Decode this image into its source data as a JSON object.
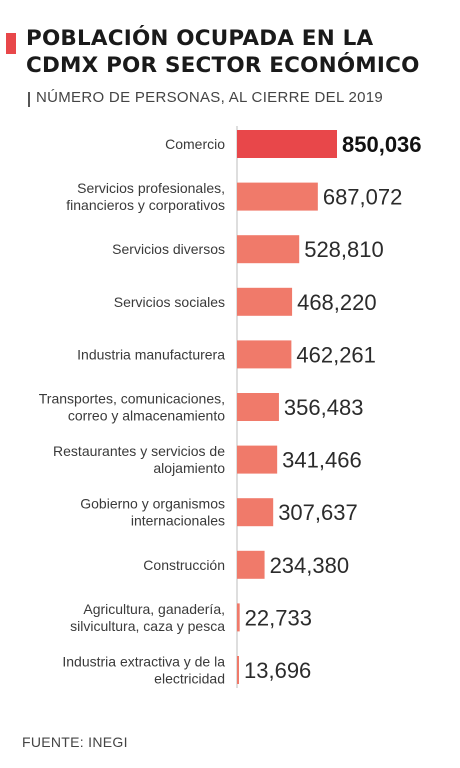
{
  "title_lines": [
    "POBLACIÓN OCUPADA EN LA",
    "CDMX POR SECTOR ECONÓMICO"
  ],
  "subtitle": "NÚMERO DE PERSONAS, AL CIERRE DEL 2019",
  "source": "FUENTE: INEGI",
  "colors": {
    "accent": "#e8474a",
    "highlight_bar": "#e8474a",
    "bar": "#f07a6a"
  },
  "chart_data": {
    "type": "bar",
    "orientation": "horizontal",
    "categories": [
      [
        "Comercio"
      ],
      [
        "Servicios profesionales,",
        "financieros y corporativos"
      ],
      [
        "Servicios diversos"
      ],
      [
        "Servicios sociales"
      ],
      [
        "Industria manufacturera"
      ],
      [
        "Transportes, comunicaciones,",
        "correo y almacenamiento"
      ],
      [
        "Restaurantes y servicios de",
        "alojamiento"
      ],
      [
        "Gobierno y organismos",
        "internacionales"
      ],
      [
        "Construcción"
      ],
      [
        "Agricultura, ganadería,",
        "silvicultura, caza y pesca"
      ],
      [
        "Industria extractiva y de la",
        "electricidad"
      ]
    ],
    "values": [
      850036,
      687072,
      528810,
      468220,
      462261,
      356483,
      341466,
      307637,
      234380,
      22733,
      13696
    ],
    "value_labels": [
      "850,036",
      "687,072",
      "528,810",
      "468,220",
      "462,261",
      "356,483",
      "341,466",
      "307,637",
      "234,380",
      "22,733",
      "13,696"
    ],
    "highlight_index": 0,
    "grid": false
  }
}
